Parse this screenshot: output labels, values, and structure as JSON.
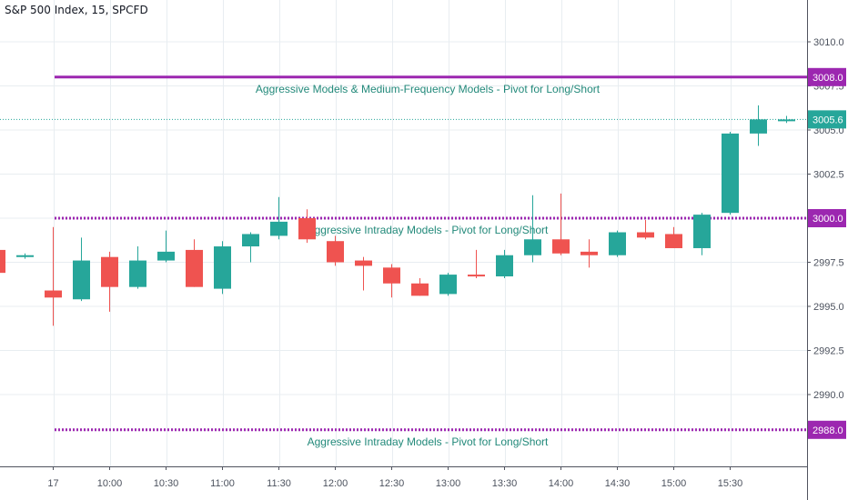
{
  "chart_title": "S&P 500 Index, 15, SPCFD",
  "colors": {
    "up": "#26a69a",
    "down": "#ef5350",
    "pivot": "#9c27b0",
    "last_price": "#26a69a",
    "annotation_text": "#22897a",
    "grid": "#e8edf1"
  },
  "chart_data": {
    "type": "candlestick",
    "title": "S&P 500 Index, 15, SPCFD",
    "ylim": [
      2986.5,
      3011.5
    ],
    "y_ticks": [
      "2990.0",
      "2992.5",
      "2995.0",
      "2997.5",
      "3000.0",
      "3002.5",
      "3005.0",
      "3007.5",
      "3010.0"
    ],
    "y_tick_values": [
      2990.0,
      2992.5,
      2995.0,
      2997.5,
      3000.0,
      3002.5,
      3005.0,
      3007.5,
      3010.0
    ],
    "x_ticks": [
      "17",
      "10:00",
      "10:30",
      "11:00",
      "11:30",
      "12:00",
      "12:30",
      "13:00",
      "13:30",
      "14:00",
      "14:30",
      "15:00",
      "15:30"
    ],
    "x_tick_bar_index": [
      0,
      2,
      4,
      6,
      8,
      10,
      12,
      14,
      16,
      18,
      20,
      22,
      24
    ],
    "candles": [
      {
        "o": 2998.2,
        "h": 2998.4,
        "l": 2996.8,
        "c": 2996.9
      },
      {
        "o": 2997.8,
        "h": 2998.0,
        "l": 2997.7,
        "c": 2997.9
      },
      {
        "o": 2995.9,
        "h": 2999.5,
        "l": 2993.9,
        "c": 2995.5
      },
      {
        "o": 2995.4,
        "h": 2998.9,
        "l": 2995.3,
        "c": 2997.6
      },
      {
        "o": 2997.8,
        "h": 2998.1,
        "l": 2994.7,
        "c": 2996.1
      },
      {
        "o": 2996.1,
        "h": 2998.4,
        "l": 2996.0,
        "c": 2997.6
      },
      {
        "o": 2997.6,
        "h": 2999.3,
        "l": 2997.5,
        "c": 2998.1
      },
      {
        "o": 2998.2,
        "h": 2998.8,
        "l": 2996.1,
        "c": 2996.1
      },
      {
        "o": 2996.0,
        "h": 2998.7,
        "l": 2995.7,
        "c": 2998.4
      },
      {
        "o": 2998.4,
        "h": 2999.2,
        "l": 2997.5,
        "c": 2999.1
      },
      {
        "o": 2999.0,
        "h": 3001.2,
        "l": 2998.8,
        "c": 2999.8
      },
      {
        "o": 3000.0,
        "h": 3000.5,
        "l": 2998.6,
        "c": 2998.8
      },
      {
        "o": 2998.7,
        "h": 2999.0,
        "l": 2997.3,
        "c": 2997.5
      },
      {
        "o": 2997.6,
        "h": 2997.8,
        "l": 2995.9,
        "c": 2997.3
      },
      {
        "o": 2997.2,
        "h": 2997.4,
        "l": 2995.5,
        "c": 2996.3
      },
      {
        "o": 2996.3,
        "h": 2996.6,
        "l": 2995.6,
        "c": 2995.6
      },
      {
        "o": 2995.7,
        "h": 2996.9,
        "l": 2995.6,
        "c": 2996.8
      },
      {
        "o": 2996.8,
        "h": 2998.2,
        "l": 2996.6,
        "c": 2996.7
      },
      {
        "o": 2996.7,
        "h": 2998.2,
        "l": 2996.6,
        "c": 2997.9
      },
      {
        "o": 2997.9,
        "h": 3001.3,
        "l": 2997.5,
        "c": 2998.8
      },
      {
        "o": 2998.8,
        "h": 3001.4,
        "l": 2997.9,
        "c": 2998.0
      },
      {
        "o": 2998.1,
        "h": 2998.8,
        "l": 2997.2,
        "c": 2997.9
      },
      {
        "o": 2997.9,
        "h": 2999.3,
        "l": 2997.8,
        "c": 2999.2
      },
      {
        "o": 2999.2,
        "h": 2999.9,
        "l": 2998.8,
        "c": 2998.9
      },
      {
        "o": 2999.1,
        "h": 2999.5,
        "l": 2998.3,
        "c": 2998.3
      },
      {
        "o": 2998.3,
        "h": 3000.3,
        "l": 2997.9,
        "c": 3000.2
      },
      {
        "o": 3000.3,
        "h": 3004.9,
        "l": 3000.2,
        "c": 3004.8
      },
      {
        "o": 3004.8,
        "h": 3006.4,
        "l": 3004.1,
        "c": 3005.6
      },
      {
        "o": 3005.5,
        "h": 3005.8,
        "l": 3005.4,
        "c": 3005.6
      }
    ],
    "pivot_lines": [
      {
        "value": 3008.0,
        "label": "3008.0",
        "style": "solid",
        "annotation": "Aggressive Models & Medium-Frequency Models - Pivot for Long/Short"
      },
      {
        "value": 3000.0,
        "label": "3000.0",
        "style": "dotted",
        "annotation": "Aggressive Intraday Models - Pivot for Long/Short"
      },
      {
        "value": 2988.0,
        "label": "2988.0",
        "style": "dotted",
        "annotation": "Aggressive Intraday Models - Pivot for Long/Short"
      }
    ],
    "last_price": {
      "value": 3005.6,
      "label": "3005.6"
    }
  }
}
